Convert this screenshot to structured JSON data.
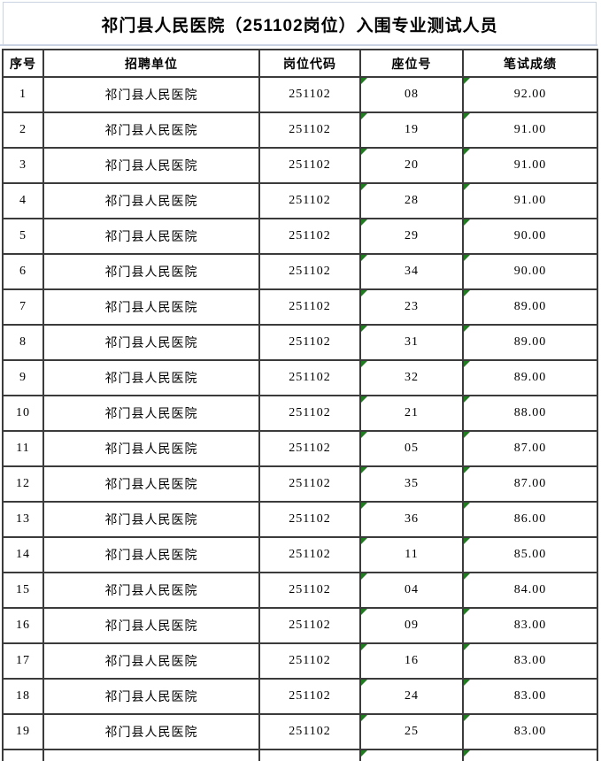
{
  "title": "祁门县人民医院（251102岗位）入围专业测试人员",
  "table": {
    "headers": [
      "序号",
      "招聘单位",
      "岗位代码",
      "座位号",
      "笔试成绩"
    ],
    "rows": [
      {
        "seq": "1",
        "unit": "祁门县人民医院",
        "code": "251102",
        "seat": "08",
        "score": "92.00"
      },
      {
        "seq": "2",
        "unit": "祁门县人民医院",
        "code": "251102",
        "seat": "19",
        "score": "91.00"
      },
      {
        "seq": "3",
        "unit": "祁门县人民医院",
        "code": "251102",
        "seat": "20",
        "score": "91.00"
      },
      {
        "seq": "4",
        "unit": "祁门县人民医院",
        "code": "251102",
        "seat": "28",
        "score": "91.00"
      },
      {
        "seq": "5",
        "unit": "祁门县人民医院",
        "code": "251102",
        "seat": "29",
        "score": "90.00"
      },
      {
        "seq": "6",
        "unit": "祁门县人民医院",
        "code": "251102",
        "seat": "34",
        "score": "90.00"
      },
      {
        "seq": "7",
        "unit": "祁门县人民医院",
        "code": "251102",
        "seat": "23",
        "score": "89.00"
      },
      {
        "seq": "8",
        "unit": "祁门县人民医院",
        "code": "251102",
        "seat": "31",
        "score": "89.00"
      },
      {
        "seq": "9",
        "unit": "祁门县人民医院",
        "code": "251102",
        "seat": "32",
        "score": "89.00"
      },
      {
        "seq": "10",
        "unit": "祁门县人民医院",
        "code": "251102",
        "seat": "21",
        "score": "88.00"
      },
      {
        "seq": "11",
        "unit": "祁门县人民医院",
        "code": "251102",
        "seat": "05",
        "score": "87.00"
      },
      {
        "seq": "12",
        "unit": "祁门县人民医院",
        "code": "251102",
        "seat": "35",
        "score": "87.00"
      },
      {
        "seq": "13",
        "unit": "祁门县人民医院",
        "code": "251102",
        "seat": "36",
        "score": "86.00"
      },
      {
        "seq": "14",
        "unit": "祁门县人民医院",
        "code": "251102",
        "seat": "11",
        "score": "85.00"
      },
      {
        "seq": "15",
        "unit": "祁门县人民医院",
        "code": "251102",
        "seat": "04",
        "score": "84.00"
      },
      {
        "seq": "16",
        "unit": "祁门县人民医院",
        "code": "251102",
        "seat": "09",
        "score": "83.00"
      },
      {
        "seq": "17",
        "unit": "祁门县人民医院",
        "code": "251102",
        "seat": "16",
        "score": "83.00"
      },
      {
        "seq": "18",
        "unit": "祁门县人民医院",
        "code": "251102",
        "seat": "24",
        "score": "83.00"
      },
      {
        "seq": "19",
        "unit": "祁门县人民医院",
        "code": "251102",
        "seat": "25",
        "score": "83.00"
      }
    ],
    "flag_columns": [
      "seat",
      "score"
    ],
    "partial_row_visible": true
  },
  "icons": {
    "error_flag": "green-corner-triangle-text-as-number-indicator"
  },
  "colors": {
    "background": "#ffffff",
    "text": "#000000",
    "table_border": "#3b3b3b",
    "title_cell_border": "#c9d3e2",
    "flag_green": "#1f7d1f"
  }
}
